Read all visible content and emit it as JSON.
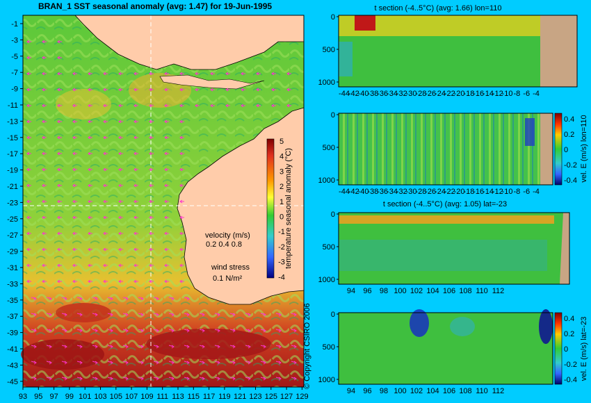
{
  "main_map": {
    "title": "BRAN_1 SST seasonal anomaly (avg: 1.47) for 19-Jun-1995",
    "y_ticks": [
      "-1",
      "-3",
      "-5",
      "-7",
      "-9",
      "-11",
      "-13",
      "-15",
      "-17",
      "-19",
      "-21",
      "-23",
      "-25",
      "-27",
      "-29",
      "-31",
      "-33",
      "-35",
      "-37",
      "-39",
      "-41",
      "-43",
      "-45"
    ],
    "x_ticks": [
      "93",
      "95",
      "97",
      "99",
      "101",
      "103",
      "105",
      "107",
      "109",
      "111",
      "113",
      "115",
      "117",
      "119",
      "121",
      "123",
      "125",
      "127",
      "129"
    ],
    "colorbar_label": "temperature seasonal anomaly (°C)",
    "colorbar_ticks": [
      "5",
      "4",
      "3",
      "2",
      "1",
      "0",
      "-1",
      "-2",
      "-3",
      "-4"
    ],
    "velocity_label": "velocity (m/s)",
    "velocity_values": "0.2 0.4 0.8",
    "wind_label": "wind stress",
    "wind_value": "0.1 N/m²",
    "copyright": "© Copyright CSIRO 2006",
    "colors": {
      "ocean_mid": "#3fbf3f",
      "land": "#ffccaa",
      "warm": "#b22222",
      "vectors": "#ff33cc"
    }
  },
  "panels": [
    {
      "title": "t section (-4..5°C) (avg: 1.66) lon=110",
      "y_ticks": [
        "0",
        "500",
        "1000"
      ],
      "x_ticks": [
        "-44",
        "-42",
        "-40",
        "-38",
        "-36",
        "-34",
        "-32",
        "-30",
        "-28",
        "-26",
        "-24",
        "-22",
        "-20",
        "-18",
        "-16",
        "-14",
        "-12",
        "-10",
        "-8",
        "-6",
        "-4"
      ],
      "colorbar": null
    },
    {
      "title": "",
      "y_ticks": [
        "0",
        "500",
        "1000"
      ],
      "x_ticks": [
        "-44",
        "-42",
        "-40",
        "-38",
        "-36",
        "-34",
        "-32",
        "-30",
        "-28",
        "-26",
        "-24",
        "-22",
        "-20",
        "-18",
        "-16",
        "-14",
        "-12",
        "-10",
        "-8",
        "-6",
        "-4"
      ],
      "colorbar": {
        "label": "vel. E (m/s) lon=110",
        "ticks": [
          "0.4",
          "0.2",
          "0",
          "-0.2",
          "-0.4"
        ]
      }
    },
    {
      "title": "t section (-4..5°C) (avg: 1.05) lat=-23",
      "y_ticks": [
        "0",
        "500",
        "1000"
      ],
      "x_ticks": [
        "94",
        "96",
        "98",
        "100",
        "102",
        "104",
        "106",
        "108",
        "110",
        "112"
      ],
      "colorbar": null
    },
    {
      "title": "",
      "y_ticks": [
        "0",
        "500",
        "1000"
      ],
      "x_ticks": [
        "94",
        "96",
        "98",
        "100",
        "102",
        "104",
        "106",
        "108",
        "110",
        "112"
      ],
      "colorbar": {
        "label": "vel. E (m/s) lat=-23",
        "ticks": [
          "0.4",
          "0.2",
          "0",
          "-0.2",
          "-0.4"
        ]
      }
    }
  ]
}
